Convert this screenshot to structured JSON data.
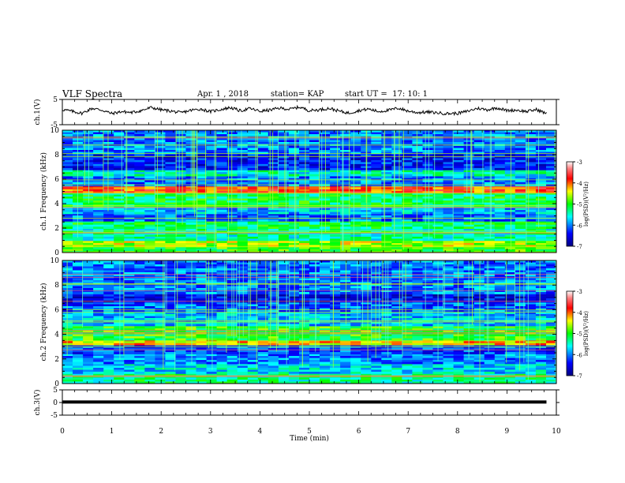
{
  "header": {
    "title": "VLF Spectra",
    "date": "Apr. 1 , 2018",
    "station": "station= KAP",
    "start": "start UT =  17: 10: 1"
  },
  "chart_data": [
    {
      "type": "line",
      "name": "ch1-waveform",
      "ylabel": "ch.1(V)",
      "ylim": [
        -5,
        5
      ],
      "yticks": [
        "5",
        "-5"
      ],
      "xlim": [
        0,
        10
      ],
      "note_shape": "noisy trace around 0 V, amplitude about ±1.5 V",
      "x": [
        0,
        0.2,
        0.4,
        0.6,
        0.8,
        1.0,
        1.2,
        1.4,
        1.6,
        1.8,
        2.0,
        2.2,
        2.4,
        2.6,
        2.8,
        3.0,
        3.2,
        3.4,
        3.6,
        3.8,
        4.0,
        4.2,
        4.4,
        4.6,
        4.8,
        5.0,
        5.2,
        5.4,
        5.6,
        5.8,
        6.0,
        6.2,
        6.4,
        6.6,
        6.8,
        7.0,
        7.2,
        7.4,
        7.6,
        7.8,
        8.0,
        8.2,
        8.4,
        8.6,
        8.8,
        9.0,
        9.2,
        9.4,
        9.6,
        9.8
      ],
      "y": [
        1.0,
        0.3,
        -0.5,
        1.5,
        0.8,
        -0.6,
        0.2,
        -0.2,
        0.6,
        1.8,
        0.9,
        0.4,
        -0.3,
        0.7,
        1.2,
        0.2,
        1.0,
        1.8,
        0.5,
        1.4,
        0.3,
        0.8,
        1.6,
        1.1,
        2.0,
        0.6,
        0.9,
        1.5,
        0.4,
        -0.4,
        0.6,
        1.2,
        0.2,
        0.7,
        1.6,
        0.4,
        -0.2,
        0.0,
        -0.3,
        -0.6,
        -0.5,
        0.3,
        1.5,
        0.9,
        1.7,
        0.6,
        0.8,
        0.2,
        1.0,
        -0.6
      ]
    },
    {
      "type": "heatmap",
      "name": "ch1-spectrogram",
      "ylabel": "ch.1 Frequency (kHz)",
      "ylim": [
        0,
        10
      ],
      "yticks": [
        "0",
        "2",
        "4",
        "6",
        "8",
        "10"
      ],
      "xlim": [
        0,
        10
      ],
      "colorbar": {
        "label": "log(PSD)(V²/Hz)",
        "range": [
          -7,
          -3
        ],
        "ticks": [
          "-3",
          "-4",
          "-5",
          "-6",
          "-7"
        ]
      },
      "bands": [
        {
          "from": 0.0,
          "to": 0.6,
          "level": -5.0
        },
        {
          "from": 0.6,
          "to": 1.1,
          "level": -4.6
        },
        {
          "from": 1.1,
          "to": 2.1,
          "level": -5.4
        },
        {
          "from": 2.1,
          "to": 2.6,
          "level": -5.2
        },
        {
          "from": 2.6,
          "to": 3.2,
          "level": -6.1
        },
        {
          "from": 3.2,
          "to": 3.8,
          "level": -5.8
        },
        {
          "from": 3.8,
          "to": 4.9,
          "level": -5.2
        },
        {
          "from": 4.9,
          "to": 5.5,
          "level": -3.9
        },
        {
          "from": 5.5,
          "to": 6.4,
          "level": -6.0
        },
        {
          "from": 6.4,
          "to": 6.9,
          "level": -5.5
        },
        {
          "from": 6.9,
          "to": 8.2,
          "level": -6.4
        },
        {
          "from": 8.2,
          "to": 10.0,
          "level": -6.0
        }
      ]
    },
    {
      "type": "heatmap",
      "name": "ch2-spectrogram",
      "ylabel": "ch.2 Frequency (kHz)",
      "ylim": [
        0,
        10
      ],
      "yticks": [
        "0",
        "2",
        "4",
        "6",
        "8",
        "10"
      ],
      "xlim": [
        0,
        10
      ],
      "colorbar": {
        "label": "log(PSD)(V²/Hz)",
        "range": [
          -7,
          -3
        ],
        "ticks": [
          "-3",
          "-4",
          "-5",
          "-6",
          "-7"
        ]
      },
      "bands": [
        {
          "from": 0.0,
          "to": 0.8,
          "level": -5.3
        },
        {
          "from": 0.8,
          "to": 1.6,
          "level": -5.7
        },
        {
          "from": 1.6,
          "to": 2.4,
          "level": -6.0
        },
        {
          "from": 2.4,
          "to": 3.2,
          "level": -6.2
        },
        {
          "from": 3.2,
          "to": 3.6,
          "level": -4.3
        },
        {
          "from": 3.6,
          "to": 4.8,
          "level": -5.0
        },
        {
          "from": 4.8,
          "to": 5.8,
          "level": -5.8
        },
        {
          "from": 5.8,
          "to": 6.6,
          "level": -6.1
        },
        {
          "from": 6.6,
          "to": 7.4,
          "level": -6.5
        },
        {
          "from": 7.4,
          "to": 10.0,
          "level": -6.0
        }
      ]
    },
    {
      "type": "line",
      "name": "ch3-waveform",
      "ylabel": "ch.3(V)",
      "ylim": [
        -5,
        5
      ],
      "yticks": [
        "5",
        "0",
        "-5"
      ],
      "xlim": [
        0,
        10
      ],
      "x": [
        0,
        9.8
      ],
      "y": [
        0.2,
        0.2
      ]
    }
  ],
  "xaxis": {
    "label": "Time (min)",
    "ticks": [
      "0",
      "1",
      "2",
      "3",
      "4",
      "5",
      "6",
      "7",
      "8",
      "9",
      "10"
    ]
  },
  "colors": {
    "axes": "#000000",
    "colormap": [
      "#0000ff",
      "#00ffff",
      "#00ff00",
      "#ffff00",
      "#ff0000"
    ]
  }
}
